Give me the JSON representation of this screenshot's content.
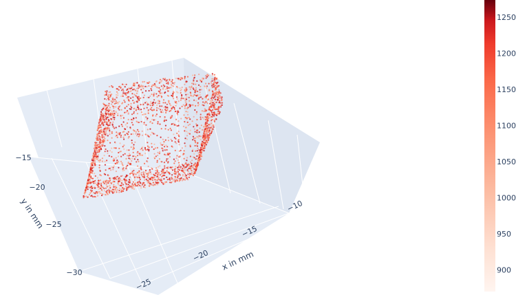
{
  "chart_data": {
    "type": "scatter3d",
    "title": "",
    "description_of_shape": "hollow rectangular box shell of points",
    "x_axis": {
      "label": "x in mm",
      "ticks": [
        -25,
        -20,
        -15,
        -10
      ],
      "tick_labels": [
        "−25",
        "−20",
        "−15",
        "−10"
      ],
      "range": [
        -28,
        -8
      ]
    },
    "y_axis": {
      "label": "y in mm",
      "ticks": [
        -30,
        -25,
        -20,
        -15
      ],
      "tick_labels": [
        "−30",
        "−25",
        "−20",
        "−15"
      ],
      "range": [
        -32,
        -13
      ]
    },
    "z_axis": {
      "label": "",
      "ticks": [],
      "range": [
        0,
        1
      ]
    },
    "point_cloud": {
      "x_range": [
        -24,
        -14
      ],
      "y_range": [
        -27,
        -16
      ],
      "approx_point_count": 12000
    },
    "colorbar": {
      "colorscale": "Reds",
      "range": [
        870,
        1270
      ],
      "ticks": [
        900,
        950,
        1000,
        1050,
        1100,
        1150,
        1200,
        1250
      ],
      "tick_labels": [
        "900",
        "950",
        "1000",
        "1050",
        "1100",
        "1150",
        "1200",
        "1250"
      ]
    },
    "scene_background": "#e5ecf6",
    "grid": true,
    "point_color": "#e8463a"
  }
}
